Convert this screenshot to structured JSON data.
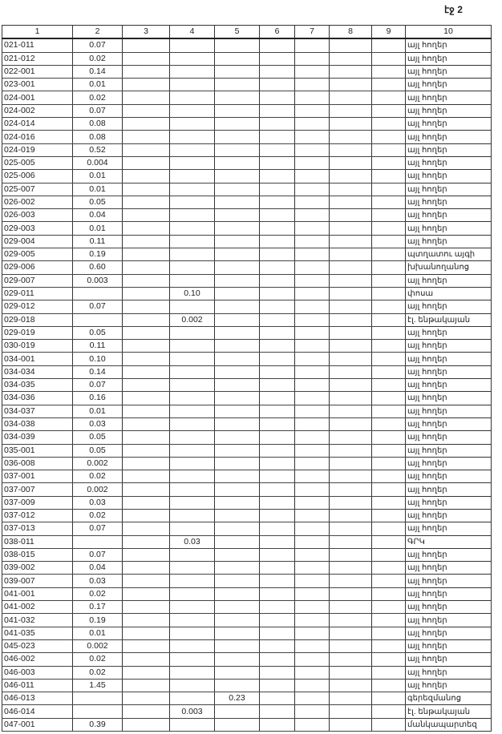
{
  "page_label": "էջ 2",
  "table": {
    "headers": [
      "1",
      "2",
      "3",
      "4",
      "5",
      "6",
      "7",
      "8",
      "9",
      "10"
    ],
    "rows": [
      [
        "021-011",
        "0.07",
        "",
        "",
        "",
        "",
        "",
        "",
        "",
        "այլ հողեր"
      ],
      [
        "021-012",
        "0.02",
        "",
        "",
        "",
        "",
        "",
        "",
        "",
        "այլ հողեր"
      ],
      [
        "022-001",
        "0.14",
        "",
        "",
        "",
        "",
        "",
        "",
        "",
        "այլ հողեր"
      ],
      [
        "023-001",
        "0.01",
        "",
        "",
        "",
        "",
        "",
        "",
        "",
        "այլ հողեր"
      ],
      [
        "024-001",
        "0.02",
        "",
        "",
        "",
        "",
        "",
        "",
        "",
        "այլ հողեր"
      ],
      [
        "024-002",
        "0.07",
        "",
        "",
        "",
        "",
        "",
        "",
        "",
        "այլ հողեր"
      ],
      [
        "024-014",
        "0.08",
        "",
        "",
        "",
        "",
        "",
        "",
        "",
        "այլ հողեր"
      ],
      [
        "024-016",
        "0.08",
        "",
        "",
        "",
        "",
        "",
        "",
        "",
        "այլ հողեր"
      ],
      [
        "024-019",
        "0.52",
        "",
        "",
        "",
        "",
        "",
        "",
        "",
        "այլ հողեր"
      ],
      [
        "025-005",
        "0.004",
        "",
        "",
        "",
        "",
        "",
        "",
        "",
        "այլ հողեր"
      ],
      [
        "025-006",
        "0.01",
        "",
        "",
        "",
        "",
        "",
        "",
        "",
        "այլ հողեր"
      ],
      [
        "025-007",
        "0.01",
        "",
        "",
        "",
        "",
        "",
        "",
        "",
        "այլ հողեր"
      ],
      [
        "026-002",
        "0.05",
        "",
        "",
        "",
        "",
        "",
        "",
        "",
        "այլ հողեր"
      ],
      [
        "026-003",
        "0.04",
        "",
        "",
        "",
        "",
        "",
        "",
        "",
        "այլ հողեր"
      ],
      [
        "029-003",
        "0.01",
        "",
        "",
        "",
        "",
        "",
        "",
        "",
        "այլ հողեր"
      ],
      [
        "029-004",
        "0.11",
        "",
        "",
        "",
        "",
        "",
        "",
        "",
        "այլ հողեր"
      ],
      [
        "029-005",
        "0.19",
        "",
        "",
        "",
        "",
        "",
        "",
        "",
        "պտղատու այգի"
      ],
      [
        "029-006",
        "0.60",
        "",
        "",
        "",
        "",
        "",
        "",
        "",
        "խխանողանոց"
      ],
      [
        "029-007",
        "0.003",
        "",
        "",
        "",
        "",
        "",
        "",
        "",
        "այլ հողեր"
      ],
      [
        "029-011",
        "",
        "",
        "0.10",
        "",
        "",
        "",
        "",
        "",
        "փոսա"
      ],
      [
        "029-012",
        "0.07",
        "",
        "",
        "",
        "",
        "",
        "",
        "",
        "այլ հողեր"
      ],
      [
        "029-018",
        "",
        "",
        "0.002",
        "",
        "",
        "",
        "",
        "",
        "էլ. ենթակայան"
      ],
      [
        "029-019",
        "0.05",
        "",
        "",
        "",
        "",
        "",
        "",
        "",
        "այլ հողեր"
      ],
      [
        "030-019",
        "0.11",
        "",
        "",
        "",
        "",
        "",
        "",
        "",
        "այլ հողեր"
      ],
      [
        "034-001",
        "0.10",
        "",
        "",
        "",
        "",
        "",
        "",
        "",
        "այլ հողեր"
      ],
      [
        "034-034",
        "0.14",
        "",
        "",
        "",
        "",
        "",
        "",
        "",
        "այլ հողեր"
      ],
      [
        "034-035",
        "0.07",
        "",
        "",
        "",
        "",
        "",
        "",
        "",
        "այլ հողեր"
      ],
      [
        "034-036",
        "0.16",
        "",
        "",
        "",
        "",
        "",
        "",
        "",
        "այլ հողեր"
      ],
      [
        "034-037",
        "0.01",
        "",
        "",
        "",
        "",
        "",
        "",
        "",
        "այլ հողեր"
      ],
      [
        "034-038",
        "0.03",
        "",
        "",
        "",
        "",
        "",
        "",
        "",
        "այլ հողեր"
      ],
      [
        "034-039",
        "0.05",
        "",
        "",
        "",
        "",
        "",
        "",
        "",
        "այլ հողեր"
      ],
      [
        "035-001",
        "0.05",
        "",
        "",
        "",
        "",
        "",
        "",
        "",
        "այլ հողեր"
      ],
      [
        "036-008",
        "0.002",
        "",
        "",
        "",
        "",
        "",
        "",
        "",
        "այլ հողեր"
      ],
      [
        "037-001",
        "0.02",
        "",
        "",
        "",
        "",
        "",
        "",
        "",
        "այլ հողեր"
      ],
      [
        "037-007",
        "0.002",
        "",
        "",
        "",
        "",
        "",
        "",
        "",
        "այլ հողեր"
      ],
      [
        "037-009",
        "0.03",
        "",
        "",
        "",
        "",
        "",
        "",
        "",
        "այլ հողեր"
      ],
      [
        "037-012",
        "0.02",
        "",
        "",
        "",
        "",
        "",
        "",
        "",
        "այլ հողեր"
      ],
      [
        "037-013",
        "0.07",
        "",
        "",
        "",
        "",
        "",
        "",
        "",
        "այլ հողեր"
      ],
      [
        "038-011",
        "",
        "",
        "0.03",
        "",
        "",
        "",
        "",
        "",
        "ԳՐԿ"
      ],
      [
        "038-015",
        "0.07",
        "",
        "",
        "",
        "",
        "",
        "",
        "",
        "այլ հողեր"
      ],
      [
        "039-002",
        "0.04",
        "",
        "",
        "",
        "",
        "",
        "",
        "",
        "այլ հողեր"
      ],
      [
        "039-007",
        "0.03",
        "",
        "",
        "",
        "",
        "",
        "",
        "",
        "այլ հողեր"
      ],
      [
        "041-001",
        "0.02",
        "",
        "",
        "",
        "",
        "",
        "",
        "",
        "այլ հողեր"
      ],
      [
        "041-002",
        "0.17",
        "",
        "",
        "",
        "",
        "",
        "",
        "",
        "այլ հողեր"
      ],
      [
        "041-032",
        "0.19",
        "",
        "",
        "",
        "",
        "",
        "",
        "",
        "այլ հողեր"
      ],
      [
        "041-035",
        "0.01",
        "",
        "",
        "",
        "",
        "",
        "",
        "",
        "այլ հողեր"
      ],
      [
        "045-023",
        "0.002",
        "",
        "",
        "",
        "",
        "",
        "",
        "",
        "այլ հողեր"
      ],
      [
        "046-002",
        "0.02",
        "",
        "",
        "",
        "",
        "",
        "",
        "",
        "այլ հողեր"
      ],
      [
        "046-003",
        "0.02",
        "",
        "",
        "",
        "",
        "",
        "",
        "",
        "այլ հողեր"
      ],
      [
        "046-011",
        "1.45",
        "",
        "",
        "",
        "",
        "",
        "",
        "",
        "այլ հողեր"
      ],
      [
        "046-013",
        "",
        "",
        "",
        "0.23",
        "",
        "",
        "",
        "",
        "գերեզմանոց"
      ],
      [
        "046-014",
        "",
        "",
        "0.003",
        "",
        "",
        "",
        "",
        "",
        "էլ. ենթակայան"
      ],
      [
        "047-001",
        "0.39",
        "",
        "",
        "",
        "",
        "",
        "",
        "",
        "մանկապարտեզ"
      ]
    ]
  }
}
